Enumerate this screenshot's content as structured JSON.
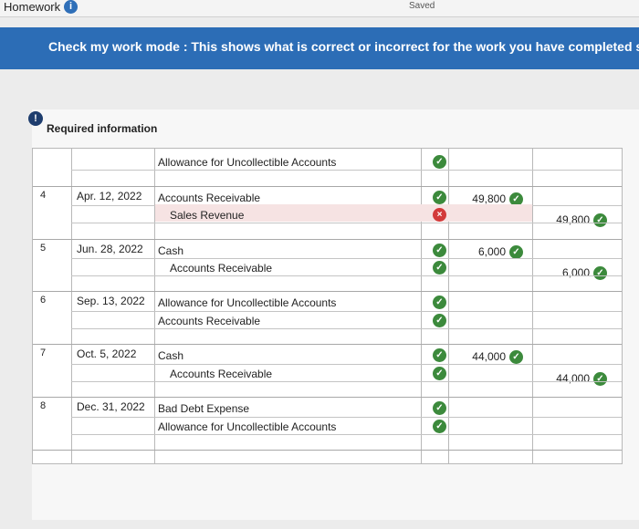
{
  "header": {
    "title": "Homework",
    "status": "Saved"
  },
  "banner": "Check my work mode : This shows what is correct or incorrect for the work you have completed so fa",
  "section": "Required information",
  "table": {
    "entries": [
      {
        "lines": [
          {
            "account": "Allowance for Uncollectible Accounts",
            "indent": false,
            "result": "correct"
          }
        ]
      },
      {
        "no": "4",
        "date": "Apr. 12, 2022",
        "lines": [
          {
            "account": "Accounts Receivable",
            "indent": false,
            "result": "correct",
            "debit": "49,800",
            "debit_result": "correct"
          },
          {
            "account": "Sales Revenue",
            "indent": true,
            "result": "incorrect",
            "credit": "49,800",
            "credit_result": "correct"
          }
        ]
      },
      {
        "no": "5",
        "date": "Jun. 28, 2022",
        "lines": [
          {
            "account": "Cash",
            "indent": false,
            "result": "correct",
            "debit": "6,000",
            "debit_result": "correct"
          },
          {
            "account": "Accounts Receivable",
            "indent": true,
            "result": "correct",
            "credit": "6,000",
            "credit_result": "correct"
          }
        ]
      },
      {
        "no": "6",
        "date": "Sep. 13, 2022",
        "lines": [
          {
            "account": "Allowance for Uncollectible Accounts",
            "indent": false,
            "result": "correct"
          },
          {
            "account": "Accounts Receivable",
            "indent": false,
            "result": "correct"
          }
        ]
      },
      {
        "no": "7",
        "date": "Oct. 5, 2022",
        "lines": [
          {
            "account": "Cash",
            "indent": false,
            "result": "correct",
            "debit": "44,000",
            "debit_result": "correct"
          },
          {
            "account": "Accounts Receivable",
            "indent": true,
            "result": "correct",
            "credit": "44,000",
            "credit_result": "correct"
          }
        ]
      },
      {
        "no": "8",
        "date": "Dec. 31, 2022",
        "lines": [
          {
            "account": "Bad Debt Expense",
            "indent": false,
            "result": "correct"
          },
          {
            "account": "Allowance for Uncollectible Accounts",
            "indent": false,
            "result": "correct"
          }
        ]
      }
    ]
  }
}
